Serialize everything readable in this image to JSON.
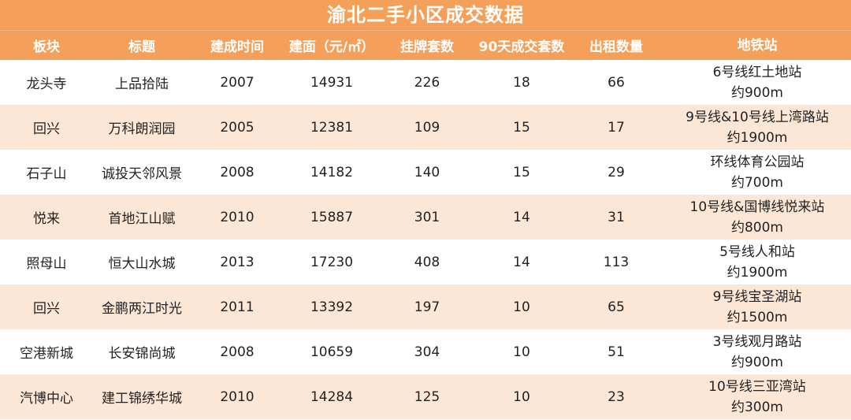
{
  "title": "渝北二手小区成交数据",
  "headers": [
    "板块",
    "标题",
    "建成时间",
    "建面（元/㎡）",
    "挂牌套数",
    "90天成交套数",
    "出租数量",
    "地铁站"
  ],
  "rows": [
    {
      "area": "龙头寺",
      "name": "上品拾陆",
      "year": "2007",
      "price": "14931",
      "listed": "226",
      "sold90": "18",
      "rent": "66",
      "metro1": "6号线红土地站",
      "metro2": "约900m"
    },
    {
      "area": "回兴",
      "name": "万科朗润园",
      "year": "2005",
      "price": "12381",
      "listed": "109",
      "sold90": "15",
      "rent": "17",
      "metro1": "9号线&10号线上湾路站",
      "metro2": "约1900m"
    },
    {
      "area": "石子山",
      "name": "诚投天邻风景",
      "year": "2008",
      "price": "14182",
      "listed": "140",
      "sold90": "15",
      "rent": "29",
      "metro1": "环线体育公园站",
      "metro2": "约700m"
    },
    {
      "area": "悦来",
      "name": "首地江山赋",
      "year": "2010",
      "price": "15887",
      "listed": "301",
      "sold90": "14",
      "rent": "31",
      "metro1": "10号线&国博线悦来站",
      "metro2": "约800m"
    },
    {
      "area": "照母山",
      "name": "恒大山水城",
      "year": "2013",
      "price": "17230",
      "listed": "408",
      "sold90": "14",
      "rent": "113",
      "metro1": "5号线人和站",
      "metro2": "约1900m"
    },
    {
      "area": "回兴",
      "name": "金鹏两江时光",
      "year": "2011",
      "price": "13392",
      "listed": "197",
      "sold90": "10",
      "rent": "65",
      "metro1": "9号线宝圣湖站",
      "metro2": "约1500m"
    },
    {
      "area": "空港新城",
      "name": "长安锦尚城",
      "year": "2008",
      "price": "10659",
      "listed": "304",
      "sold90": "10",
      "rent": "51",
      "metro1": "3号线观月路站",
      "metro2": "约900m"
    },
    {
      "area": "汽博中心",
      "name": "建工锦绣华城",
      "year": "2010",
      "price": "14284",
      "listed": "125",
      "sold90": "10",
      "rent": "23",
      "metro1": "10号线三亚湾站",
      "metro2": "约300m"
    }
  ]
}
